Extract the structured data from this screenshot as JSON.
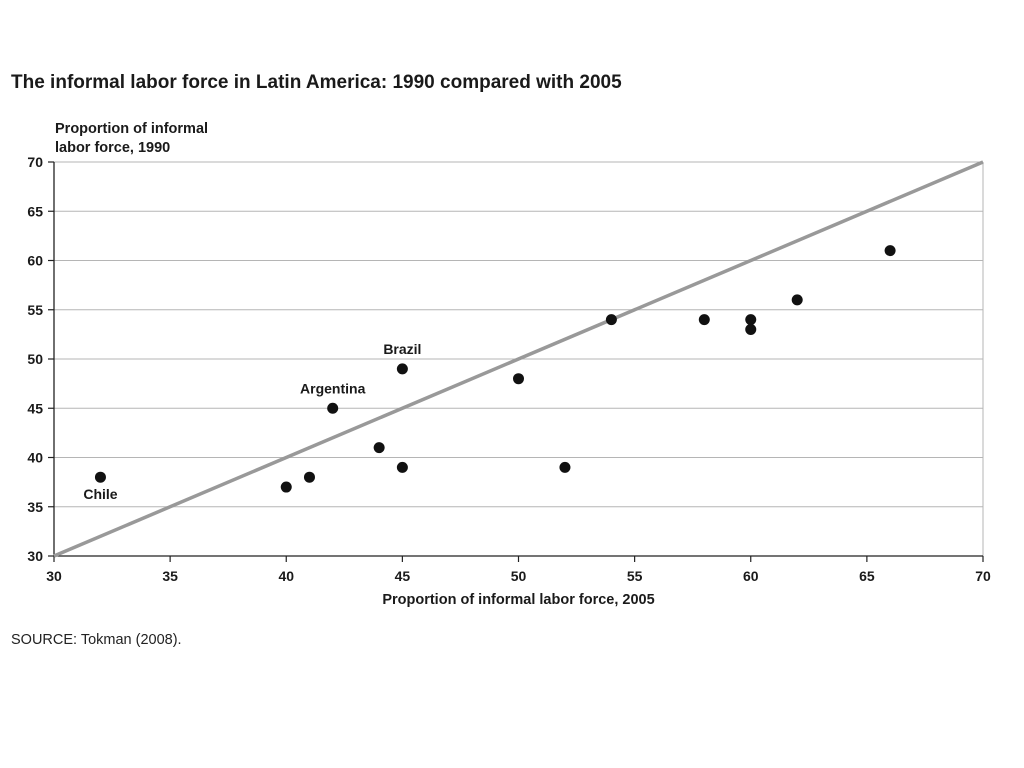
{
  "title": "The informal labor force in Latin America: 1990 compared with 2005",
  "source": "SOURCE: Tokman (2008).",
  "chart_data": {
    "type": "scatter",
    "title": "The informal labor force in Latin America: 1990 compared with 2005",
    "xlabel": "Proportion of informal labor force, 2005",
    "ylabel_lines": [
      "Proportion of informal",
      "labor force, 1990"
    ],
    "xlim": [
      30,
      70
    ],
    "ylim": [
      30,
      70
    ],
    "xticks": [
      30,
      35,
      40,
      45,
      50,
      55,
      60,
      65,
      70
    ],
    "yticks": [
      30,
      35,
      40,
      45,
      50,
      55,
      60,
      65,
      70
    ],
    "grid": "horizontal",
    "reference_line": {
      "from": [
        30,
        30
      ],
      "to": [
        70,
        70
      ],
      "color": "#999999"
    },
    "point_color": "#111111",
    "points": [
      {
        "x": 32,
        "y": 38,
        "label": "Chile",
        "label_pos": "below"
      },
      {
        "x": 40,
        "y": 37
      },
      {
        "x": 41,
        "y": 38
      },
      {
        "x": 42,
        "y": 45,
        "label": "Argentina",
        "label_pos": "above"
      },
      {
        "x": 44,
        "y": 41
      },
      {
        "x": 45,
        "y": 49,
        "label": "Brazil",
        "label_pos": "above"
      },
      {
        "x": 45,
        "y": 39
      },
      {
        "x": 50,
        "y": 48
      },
      {
        "x": 52,
        "y": 39
      },
      {
        "x": 54,
        "y": 54
      },
      {
        "x": 58,
        "y": 54
      },
      {
        "x": 60,
        "y": 54
      },
      {
        "x": 60,
        "y": 53
      },
      {
        "x": 62,
        "y": 56
      },
      {
        "x": 66,
        "y": 61
      }
    ]
  }
}
